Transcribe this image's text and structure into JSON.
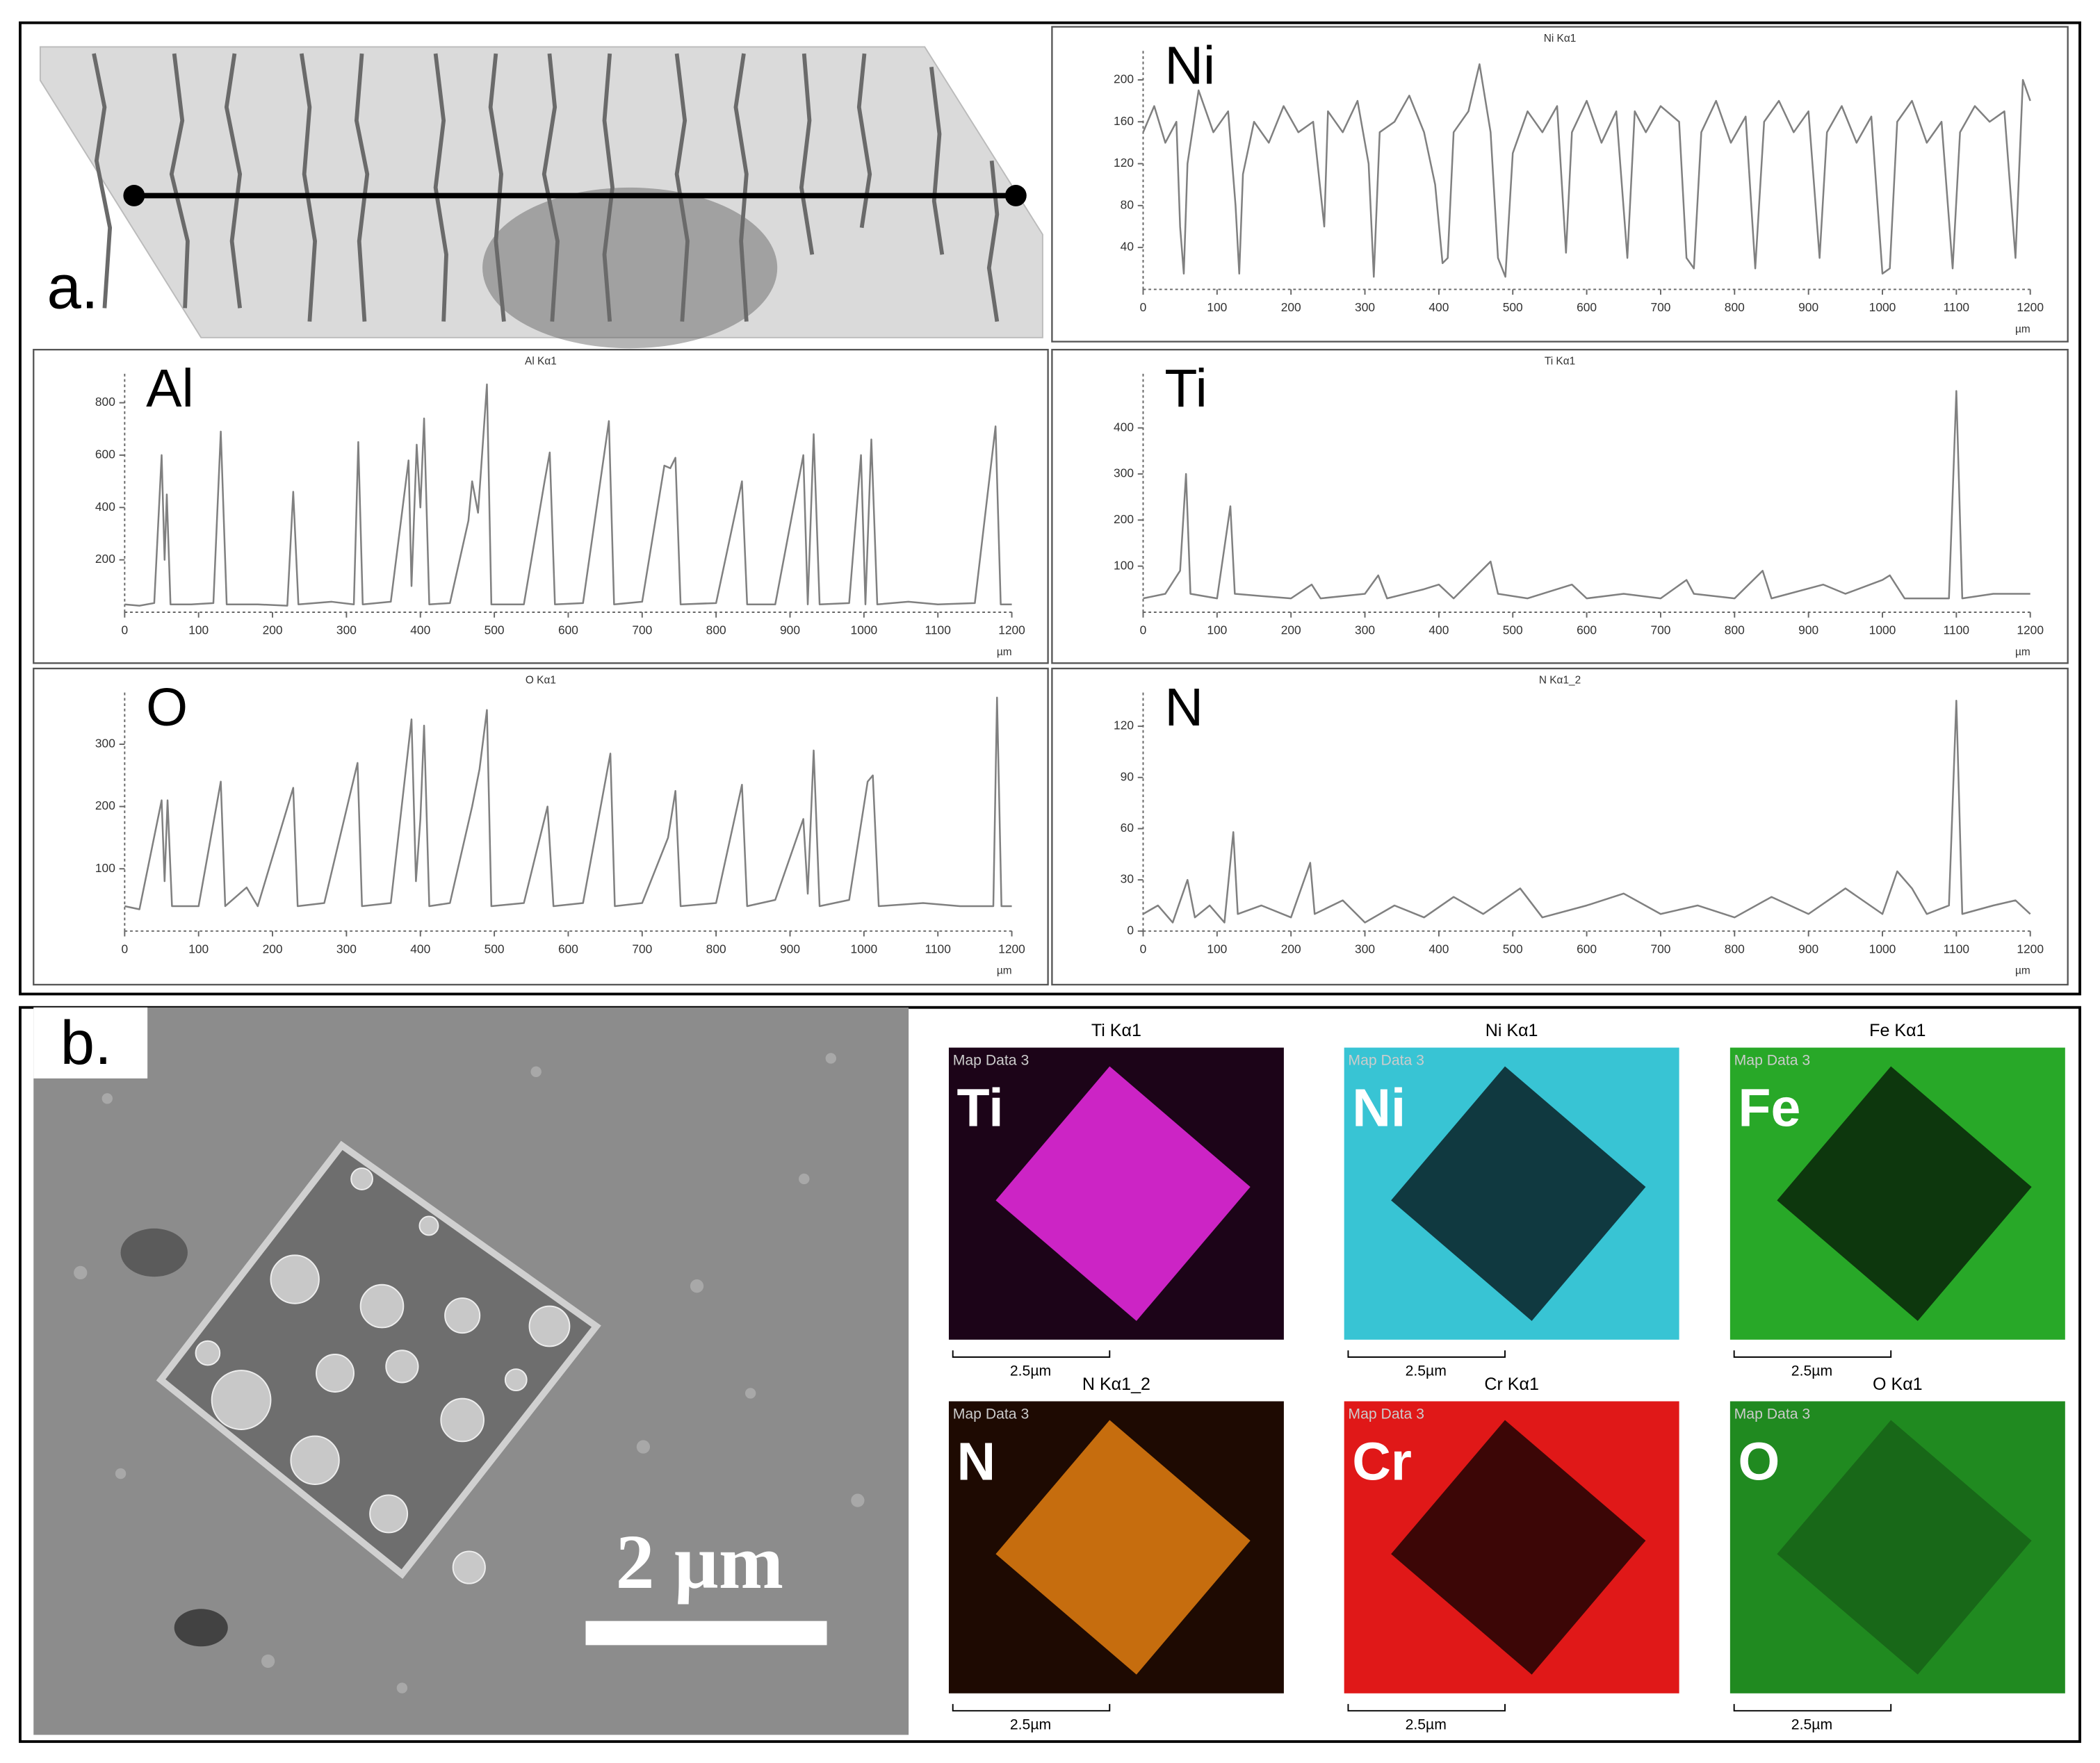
{
  "panels": {
    "a": "a.",
    "b": "b."
  },
  "sem": {
    "scale_bar": "2 µm"
  },
  "maps": [
    {
      "title": "Ti Kα1",
      "note": "Map Data 3",
      "label": "Ti",
      "scale": "2.5µm",
      "color": "#e028d8",
      "background": "#1c0418",
      "inside": "bright"
    },
    {
      "title": "Ni Kα1",
      "note": "Map Data 3",
      "label": "Ni",
      "scale": "2.5µm",
      "color": "#38c4d4",
      "background": "#0c2a30",
      "inside": "dark"
    },
    {
      "title": "Fe Kα1",
      "note": "Map Data 3",
      "label": "Fe",
      "scale": "2.5µm",
      "color": "#28a828",
      "background": "#0a2a0a",
      "inside": "dark"
    },
    {
      "title": "N Kα1_2",
      "note": "Map Data 3",
      "label": "N",
      "scale": "2.5µm",
      "color": "#d87810",
      "background": "#1e0a02",
      "inside": "bright"
    },
    {
      "title": "Cr Kα1",
      "note": "Map Data 3",
      "label": "Cr",
      "scale": "2.5µm",
      "color": "#e01818",
      "background": "#2a0404",
      "inside": "dark"
    },
    {
      "title": "O Kα1",
      "note": "Map Data 3",
      "label": "O",
      "scale": "2.5µm",
      "color": "#208a20",
      "background": "#0a220a",
      "inside": "dim"
    }
  ],
  "chart_data": [
    {
      "type": "line",
      "title": "Ni Kα1",
      "label": "Ni",
      "x_unit": "µm",
      "color": "#808080",
      "xlim": [
        0,
        1200
      ],
      "xticks": [
        0,
        100,
        200,
        300,
        400,
        500,
        600,
        700,
        800,
        900,
        1000,
        1100,
        1200
      ],
      "ylim": [
        0,
        220
      ],
      "yticks": [
        40,
        80,
        120,
        160,
        200
      ],
      "x": [
        0,
        15,
        30,
        45,
        50,
        55,
        60,
        75,
        95,
        115,
        125,
        130,
        135,
        150,
        170,
        190,
        210,
        230,
        245,
        250,
        270,
        290,
        305,
        312,
        320,
        340,
        360,
        380,
        395,
        405,
        412,
        420,
        440,
        455,
        470,
        480,
        490,
        500,
        520,
        540,
        560,
        572,
        580,
        600,
        620,
        640,
        655,
        665,
        680,
        700,
        725,
        735,
        745,
        755,
        775,
        795,
        815,
        828,
        840,
        860,
        880,
        900,
        915,
        925,
        945,
        965,
        985,
        1000,
        1010,
        1020,
        1040,
        1060,
        1080,
        1095,
        1105,
        1125,
        1145,
        1165,
        1180,
        1190,
        1200
      ],
      "values": [
        150,
        175,
        140,
        160,
        60,
        15,
        120,
        190,
        150,
        170,
        80,
        15,
        110,
        160,
        140,
        175,
        150,
        160,
        60,
        170,
        150,
        180,
        120,
        12,
        150,
        160,
        185,
        150,
        100,
        25,
        30,
        150,
        170,
        215,
        150,
        30,
        12,
        130,
        170,
        150,
        175,
        35,
        150,
        180,
        140,
        170,
        30,
        170,
        150,
        175,
        160,
        30,
        20,
        150,
        180,
        140,
        165,
        20,
        160,
        180,
        150,
        170,
        30,
        150,
        175,
        140,
        165,
        15,
        20,
        160,
        180,
        140,
        160,
        20,
        150,
        175,
        160,
        170,
        30,
        200,
        180
      ]
    },
    {
      "type": "line",
      "title": "Al Kα1",
      "label": "Al",
      "x_unit": "µm",
      "color": "#808080",
      "xlim": [
        0,
        1200
      ],
      "xticks": [
        0,
        100,
        200,
        300,
        400,
        500,
        600,
        700,
        800,
        900,
        1000,
        1100,
        1200
      ],
      "ylim": [
        0,
        880
      ],
      "yticks": [
        200,
        400,
        600,
        800
      ],
      "x": [
        0,
        20,
        40,
        50,
        54,
        57,
        62,
        90,
        120,
        130,
        138,
        180,
        220,
        228,
        235,
        280,
        310,
        316,
        322,
        360,
        384,
        388,
        395,
        400,
        405,
        412,
        440,
        465,
        470,
        478,
        490,
        496,
        540,
        568,
        575,
        582,
        620,
        655,
        662,
        700,
        730,
        738,
        745,
        752,
        800,
        835,
        842,
        880,
        918,
        924,
        932,
        940,
        980,
        996,
        1002,
        1010,
        1018,
        1060,
        1100,
        1150,
        1178,
        1185,
        1200
      ],
      "values": [
        30,
        25,
        35,
        600,
        200,
        450,
        30,
        30,
        35,
        690,
        30,
        30,
        25,
        460,
        30,
        40,
        30,
        650,
        30,
        40,
        580,
        100,
        640,
        400,
        740,
        30,
        35,
        350,
        500,
        380,
        870,
        30,
        30,
        500,
        610,
        30,
        35,
        730,
        30,
        40,
        560,
        550,
        590,
        30,
        35,
        500,
        30,
        30,
        600,
        30,
        680,
        30,
        35,
        600,
        30,
        660,
        30,
        40,
        30,
        35,
        710,
        30,
        30
      ]
    },
    {
      "type": "line",
      "title": "Ti Kα1",
      "label": "Ti",
      "x_unit": "µm",
      "color": "#808080",
      "xlim": [
        0,
        1200
      ],
      "xticks": [
        0,
        100,
        200,
        300,
        400,
        500,
        600,
        700,
        800,
        900,
        1000,
        1100,
        1200
      ],
      "ylim": [
        0,
        500
      ],
      "yticks": [
        100,
        200,
        300,
        400
      ],
      "x": [
        0,
        30,
        50,
        58,
        64,
        100,
        118,
        124,
        160,
        200,
        228,
        240,
        300,
        318,
        330,
        380,
        400,
        420,
        470,
        480,
        520,
        580,
        600,
        650,
        700,
        735,
        745,
        800,
        838,
        850,
        920,
        950,
        1000,
        1010,
        1030,
        1090,
        1100,
        1108,
        1150,
        1200
      ],
      "values": [
        30,
        40,
        90,
        300,
        40,
        30,
        230,
        40,
        35,
        30,
        60,
        30,
        40,
        80,
        30,
        50,
        60,
        30,
        110,
        40,
        30,
        60,
        30,
        40,
        30,
        70,
        40,
        30,
        90,
        30,
        60,
        40,
        70,
        80,
        30,
        30,
        480,
        30,
        40,
        40
      ]
    },
    {
      "type": "line",
      "title": "O Kα1",
      "label": "O",
      "x_unit": "µm",
      "color": "#808080",
      "xlim": [
        0,
        1200
      ],
      "xticks": [
        0,
        100,
        200,
        300,
        400,
        500,
        600,
        700,
        800,
        900,
        1000,
        1100,
        1200
      ],
      "ylim": [
        0,
        370
      ],
      "yticks": [
        100,
        200,
        300
      ],
      "x": [
        0,
        20,
        50,
        54,
        58,
        64,
        100,
        130,
        136,
        165,
        180,
        228,
        234,
        270,
        315,
        321,
        360,
        388,
        394,
        400,
        405,
        412,
        440,
        470,
        480,
        490,
        496,
        540,
        572,
        580,
        620,
        657,
        663,
        700,
        735,
        745,
        752,
        800,
        835,
        842,
        880,
        918,
        924,
        932,
        940,
        980,
        1005,
        1012,
        1020,
        1080,
        1130,
        1175,
        1180,
        1186,
        1200
      ],
      "values": [
        40,
        35,
        210,
        80,
        210,
        40,
        40,
        240,
        40,
        70,
        40,
        230,
        40,
        45,
        270,
        40,
        45,
        340,
        80,
        180,
        330,
        40,
        45,
        200,
        260,
        355,
        40,
        45,
        200,
        40,
        45,
        285,
        40,
        45,
        150,
        225,
        40,
        45,
        235,
        40,
        50,
        180,
        60,
        290,
        40,
        50,
        240,
        250,
        40,
        45,
        40,
        40,
        375,
        40,
        40
      ]
    },
    {
      "type": "line",
      "title": "N Kα1_2",
      "label": "N",
      "x_unit": "µm",
      "color": "#808080",
      "xlim": [
        0,
        1200
      ],
      "xticks": [
        0,
        100,
        200,
        300,
        400,
        500,
        600,
        700,
        800,
        900,
        1000,
        1100,
        1200
      ],
      "ylim": [
        0,
        135
      ],
      "yticks": [
        0,
        30,
        60,
        90,
        120
      ],
      "x": [
        0,
        20,
        40,
        60,
        70,
        90,
        110,
        122,
        128,
        160,
        200,
        226,
        232,
        270,
        300,
        340,
        380,
        420,
        460,
        510,
        540,
        600,
        650,
        700,
        750,
        800,
        850,
        900,
        950,
        1000,
        1020,
        1040,
        1060,
        1090,
        1100,
        1108,
        1150,
        1180,
        1200
      ],
      "values": [
        10,
        15,
        5,
        30,
        8,
        15,
        5,
        58,
        10,
        15,
        8,
        40,
        10,
        18,
        5,
        15,
        8,
        20,
        10,
        25,
        8,
        15,
        22,
        10,
        15,
        8,
        20,
        10,
        25,
        10,
        35,
        25,
        10,
        15,
        135,
        10,
        15,
        18,
        10
      ]
    }
  ]
}
